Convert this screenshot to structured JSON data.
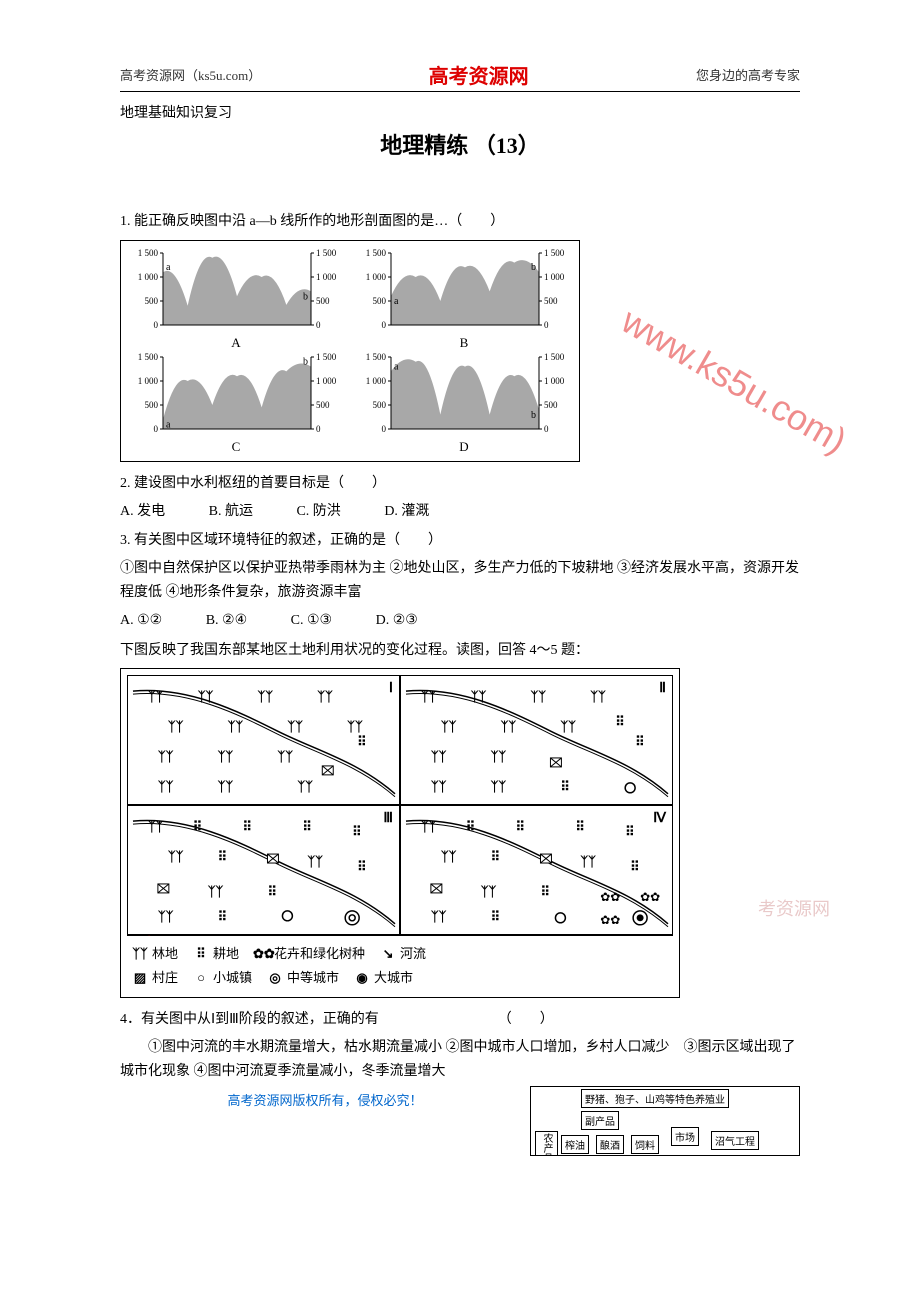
{
  "header": {
    "left": "高考资源网（ks5u.com）",
    "center": "高考资源网",
    "right": "您身边的高考专家"
  },
  "subtitle": "地理基础知识复习",
  "title": "地理精练 （13）",
  "q1": {
    "text": "1. 能正确反映图中沿 a—b 线所作的地形剖面图的是…（　　）",
    "chart": {
      "panels": [
        "A",
        "B",
        "C",
        "D"
      ],
      "ylim": [
        0,
        1500
      ],
      "yticks": [
        "0",
        "500",
        "1 000",
        "1 500"
      ],
      "yticks_right": [
        "0",
        "500",
        "1 000",
        "1 500"
      ],
      "fill_color": "#a8a8a8",
      "axis_color": "#000000",
      "label_fontsize": 9,
      "profiles": {
        "A": {
          "a_pos": "left-high",
          "b_pos": "right-low",
          "hills": [
            1100,
            400,
            1400,
            600,
            1000,
            420,
            700
          ]
        },
        "B": {
          "a_pos": "left-low",
          "b_pos": "right-high",
          "hills": [
            600,
            1000,
            500,
            1200,
            700,
            1300,
            1100
          ]
        },
        "C": {
          "a_pos": "left-low",
          "b_pos": "right-high",
          "hills": [
            200,
            1000,
            500,
            1100,
            450,
            1200,
            1300
          ]
        },
        "D": {
          "a_pos": "left-high",
          "b_pos": "right-low",
          "hills": [
            1200,
            1400,
            300,
            1300,
            300,
            1100,
            400
          ]
        }
      }
    }
  },
  "q2": {
    "text": "2. 建设图中水利枢纽的首要目标是（　　）",
    "options": {
      "A": "A. 发电",
      "B": "B. 航运",
      "C": "C. 防洪",
      "D": "D. 灌溉"
    }
  },
  "q3": {
    "text": "3. 有关图中区域环境特征的叙述，正确的是（　　）",
    "detail": "①图中自然保护区以保护亚热带季雨林为主  ②地处山区，多生产力低的下坡耕地  ③经济发展水平高，资源开发程度低  ④地形条件复杂，旅游资源丰富",
    "options": {
      "A": "A. ①②",
      "B": "B. ②④",
      "C": "C. ①③",
      "D": "D. ②③"
    }
  },
  "q45_intro": "下图反映了我国东部某地区土地利用状况的变化过程。读图，回答 4～5 题：",
  "landuse": {
    "panels": [
      "Ⅰ",
      "Ⅱ",
      "Ⅲ",
      "Ⅳ"
    ],
    "legend": {
      "forest": {
        "sym": "ᚸᚸ",
        "label": "林地"
      },
      "farmland": {
        "sym": "⠿",
        "label": "耕地"
      },
      "flowers": {
        "sym": "✿✿",
        "label": "花卉和绿化树种"
      },
      "river": {
        "sym": "〰",
        "label": "河流"
      },
      "village": {
        "sym": "▨",
        "label": "村庄"
      },
      "town": {
        "sym": "○",
        "label": "小城镇"
      },
      "medcity": {
        "sym": "◎",
        "label": "中等城市"
      },
      "bigcity": {
        "sym": "◉",
        "label": "大城市"
      }
    }
  },
  "q4": {
    "text": "4．有关图中从Ⅰ到Ⅲ阶段的叙述，正确的有　　　　　　　　　（　　）",
    "detail": "　　①图中河流的丰水期流量增大，枯水期流量减小 ②图中城市人口增加，乡村人口减少　③图示区域出现了城市化现象 ④图中河流夏季流量减小，冬季流量增大"
  },
  "footer": "高考资源网版权所有，侵权必究！",
  "eco": {
    "top": "野猪、狍子、山鸡等特色养殖业",
    "byproduct": "副产品",
    "nongchanpin": "农产品",
    "zhayou": "榨油",
    "niangjiu": "酿酒",
    "siliao": "饲料",
    "shichang": "市场",
    "zhaoqi": "沼气工程"
  },
  "watermarks": {
    "w1": "www.ks5u.com)",
    "w2": "高",
    "w3": "考资源网"
  },
  "colors": {
    "red": "#d00000",
    "blue": "#0066cc",
    "gray_fill": "#a8a8a8"
  }
}
